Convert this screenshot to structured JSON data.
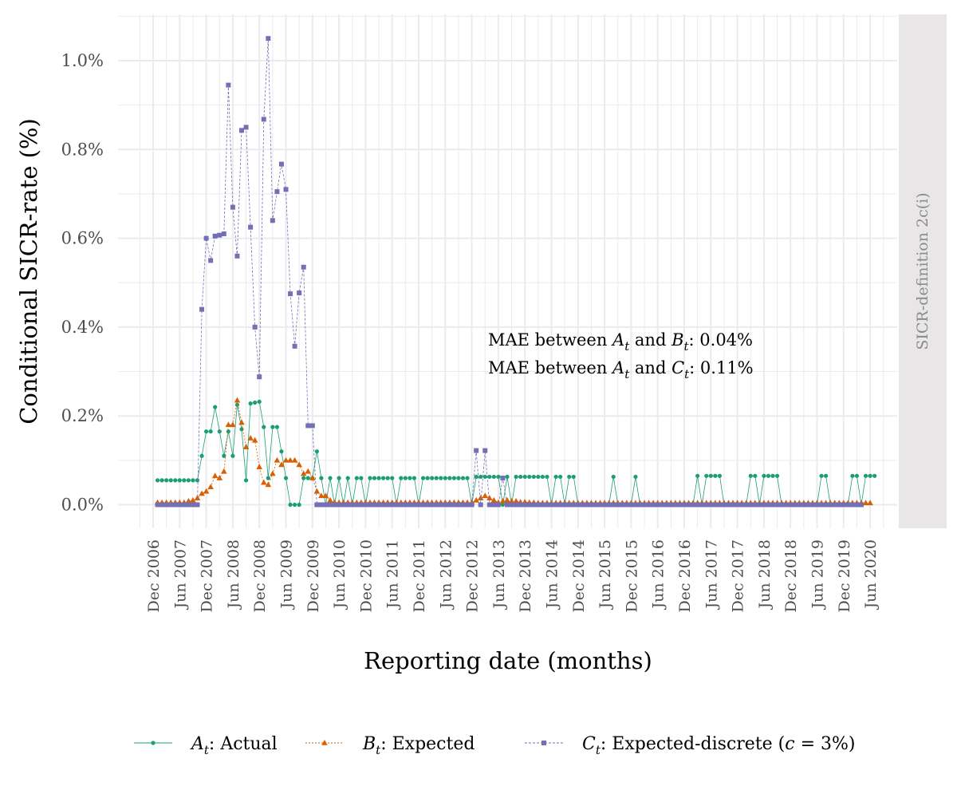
{
  "chart_data": {
    "type": "line",
    "xlabel": "Reporting date (months)",
    "ylabel": "Conditional SICR-rate (%)",
    "strip_label": "SICR-definition 2c(i)",
    "ylim": [
      -0.05,
      1.1
    ],
    "yticks": [
      0.0,
      0.2,
      0.4,
      0.6,
      0.8,
      1.0
    ],
    "ytick_labels": [
      "0.0%",
      "0.2%",
      "0.4%",
      "0.6%",
      "0.8%",
      "1.0%"
    ],
    "xticks": [
      "Dec 2006",
      "Jun 2007",
      "Dec 2007",
      "Jun 2008",
      "Dec 2008",
      "Jun 2009",
      "Dec 2009",
      "Jun 2010",
      "Dec 2010",
      "Jun 2011",
      "Dec 2011",
      "Jun 2012",
      "Dec 2012",
      "Jun 2013",
      "Dec 2013",
      "Jun 2014",
      "Dec 2014",
      "Jun 2015",
      "Dec 2015",
      "Jun 2016",
      "Dec 2016",
      "Jun 2017",
      "Dec 2017",
      "Jun 2018",
      "Dec 2018",
      "Jun 2019",
      "Dec 2019",
      "Jun 2020"
    ],
    "x_start": "2007-01",
    "x_end": "2019-12",
    "grid": true,
    "legend_position": "bottom",
    "annotations": [
      {
        "prefix": "MAE between ",
        "a": "A",
        "mid": " and ",
        "b": "B",
        "sub": "t",
        "suffix": ": 0.04%"
      },
      {
        "prefix": "MAE between ",
        "a": "A",
        "mid": " and ",
        "b": "C",
        "sub": "t",
        "suffix": ": 0.11%"
      }
    ],
    "series": [
      {
        "symbol": "A",
        "sub": "t",
        "name": ": Actual",
        "color": "#1b9e77",
        "marker": "circle",
        "dash": "",
        "values": [
          0.055,
          0.055,
          0.055,
          0.055,
          0.055,
          0.055,
          0.055,
          0.055,
          0.055,
          0.055,
          0.11,
          0.165,
          0.165,
          0.22,
          0.165,
          0.11,
          0.165,
          0.11,
          0.225,
          0.17,
          0.055,
          0.228,
          0.23,
          0.232,
          0.175,
          0.06,
          0.175,
          0.175,
          0.12,
          0.06,
          0.0,
          0.0,
          0.0,
          0.06,
          0.06,
          0.06,
          0.12,
          0.06,
          0.0,
          0.06,
          0.0,
          0.06,
          0.0,
          0.06,
          0.0,
          0.06,
          0.06,
          0.0,
          0.06,
          0.06,
          0.06,
          0.06,
          0.06,
          0.06,
          0.0,
          0.06,
          0.06,
          0.06,
          0.06,
          0.0,
          0.06,
          0.06,
          0.06,
          0.06,
          0.06,
          0.06,
          0.06,
          0.06,
          0.06,
          0.06,
          0.06,
          0.0,
          0.063,
          0.063,
          0.063,
          0.063,
          0.063,
          0.063,
          0.0,
          0.063,
          0.0,
          0.063,
          0.063,
          0.063,
          0.063,
          0.063,
          0.063,
          0.063,
          0.063,
          0.0,
          0.063,
          0.063,
          0.0,
          0.063,
          0.063,
          0.0,
          0.0,
          0.0,
          0.0,
          0.0,
          0.0,
          0.0,
          0.0,
          0.063,
          0.0,
          0.0,
          0.0,
          0.0,
          0.063,
          0.0,
          0.0,
          0.0,
          0.0,
          0.0,
          0.0,
          0.0,
          0.0,
          0.0,
          0.0,
          0.0,
          0.0,
          0.0,
          0.065,
          0.0,
          0.065,
          0.065,
          0.065,
          0.065,
          0.0,
          0.0,
          0.0,
          0.0,
          0.0,
          0.0,
          0.065,
          0.065,
          0.0,
          0.065,
          0.065,
          0.065,
          0.065,
          0.0,
          0.0,
          0.0,
          0.0,
          0.0,
          0.0,
          0.0,
          0.0,
          0.0,
          0.065,
          0.065,
          0.0,
          0.0,
          0.0,
          0.0,
          0.0,
          0.065,
          0.065,
          0.0,
          0.065,
          0.065,
          0.065
        ]
      },
      {
        "symbol": "B",
        "sub": "t",
        "name": ": Expected",
        "color": "#d95f02",
        "marker": "triangle",
        "dash": "2 2",
        "values": [
          0.005,
          0.005,
          0.005,
          0.005,
          0.005,
          0.005,
          0.005,
          0.008,
          0.01,
          0.015,
          0.025,
          0.03,
          0.04,
          0.065,
          0.06,
          0.075,
          0.18,
          0.18,
          0.235,
          0.185,
          0.13,
          0.15,
          0.145,
          0.085,
          0.05,
          0.045,
          0.07,
          0.1,
          0.09,
          0.1,
          0.1,
          0.1,
          0.09,
          0.07,
          0.075,
          0.06,
          0.03,
          0.02,
          0.02,
          0.01,
          0.005,
          0.005,
          0.005,
          0.005,
          0.005,
          0.005,
          0.005,
          0.005,
          0.005,
          0.005,
          0.005,
          0.005,
          0.005,
          0.005,
          0.005,
          0.005,
          0.005,
          0.005,
          0.005,
          0.005,
          0.005,
          0.005,
          0.005,
          0.005,
          0.005,
          0.005,
          0.005,
          0.005,
          0.005,
          0.005,
          0.005,
          0.005,
          0.01,
          0.015,
          0.02,
          0.015,
          0.01,
          0.005,
          0.008,
          0.01,
          0.008,
          0.008,
          0.006,
          0.006,
          0.005,
          0.005,
          0.004,
          0.004,
          0.004,
          0.004,
          0.004,
          0.004,
          0.004,
          0.004,
          0.004,
          0.004,
          0.004,
          0.004,
          0.004,
          0.004,
          0.004,
          0.004,
          0.004,
          0.004,
          0.004,
          0.004,
          0.004,
          0.004,
          0.004,
          0.004,
          0.004,
          0.004,
          0.004,
          0.004,
          0.004,
          0.004,
          0.004,
          0.004,
          0.004,
          0.004,
          0.004,
          0.004,
          0.004,
          0.004,
          0.004,
          0.004,
          0.004,
          0.004,
          0.004,
          0.004,
          0.004,
          0.004,
          0.004,
          0.004,
          0.004,
          0.004,
          0.004,
          0.004,
          0.004,
          0.004,
          0.004,
          0.004,
          0.004,
          0.004,
          0.004,
          0.004,
          0.004,
          0.004,
          0.004,
          0.004,
          0.004,
          0.004,
          0.004,
          0.004,
          0.004,
          0.004,
          0.004,
          0.004,
          0.004,
          0.004,
          0.004,
          0.004
        ]
      },
      {
        "symbol": "C",
        "sub": "t",
        "name": ": Expected-discrete (",
        "name_var": "c",
        "name_tail": " = 3%)",
        "color": "#7570b3",
        "marker": "square",
        "dash": "3 2",
        "values": [
          0.0,
          0.0,
          0.0,
          0.0,
          0.0,
          0.0,
          0.0,
          0.0,
          0.0,
          0.0,
          0.44,
          0.6,
          0.55,
          0.605,
          0.607,
          0.61,
          0.945,
          0.67,
          0.56,
          0.843,
          0.85,
          0.625,
          0.4,
          0.288,
          0.868,
          1.05,
          0.64,
          0.705,
          0.767,
          0.71,
          0.475,
          0.357,
          0.477,
          0.535,
          0.178,
          0.178,
          0.0,
          0.0,
          0.0,
          0.0,
          0.0,
          0.0,
          0.0,
          0.0,
          0.0,
          0.0,
          0.0,
          0.0,
          0.0,
          0.0,
          0.0,
          0.0,
          0.0,
          0.0,
          0.0,
          0.0,
          0.0,
          0.0,
          0.0,
          0.0,
          0.0,
          0.0,
          0.0,
          0.0,
          0.0,
          0.0,
          0.0,
          0.0,
          0.0,
          0.0,
          0.0,
          0.0,
          0.122,
          0.0,
          0.122,
          0.0,
          0.0,
          0.0,
          0.06,
          0.0,
          0.0,
          0.0,
          0.0,
          0.0,
          0.0,
          0.0,
          0.0,
          0.0,
          0.0,
          0.0,
          0.0,
          0.0,
          0.0,
          0.0,
          0.0,
          0.0,
          0.0,
          0.0,
          0.0,
          0.0,
          0.0,
          0.0,
          0.0,
          0.0,
          0.0,
          0.0,
          0.0,
          0.0,
          0.0,
          0.0,
          0.0,
          0.0,
          0.0,
          0.0,
          0.0,
          0.0,
          0.0,
          0.0,
          0.0,
          0.0,
          0.0,
          0.0,
          0.0,
          0.0,
          0.0,
          0.0,
          0.0,
          0.0,
          0.0,
          0.0,
          0.0,
          0.0,
          0.0,
          0.0,
          0.0,
          0.0,
          0.0,
          0.0,
          0.0,
          0.0,
          0.0,
          0.0,
          0.0,
          0.0,
          0.0,
          0.0,
          0.0,
          0.0,
          0.0,
          0.0,
          0.0,
          0.0,
          0.0,
          0.0,
          0.0,
          0.0,
          0.0,
          0.0,
          0.0,
          0.0
        ]
      }
    ]
  }
}
